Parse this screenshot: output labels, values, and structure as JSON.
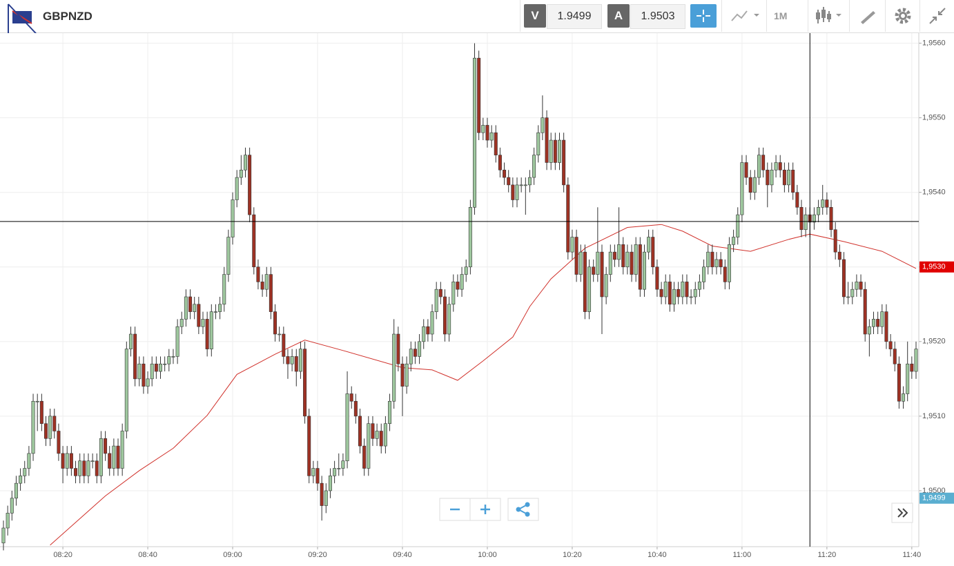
{
  "chart_data": {
    "type": "candlestick",
    "symbol": "GBPNZD",
    "bid_label": "V",
    "bid": 1.9499,
    "ask_label": "A",
    "ask": 1.9503,
    "timeframe": "1M",
    "up_color": "#9ec79e",
    "down_color": "#9e3224",
    "xlim": [
      "08:06",
      "11:41"
    ],
    "xticks": [
      "08:20",
      "08:40",
      "09:00",
      "09:20",
      "09:40",
      "10:00",
      "10:20",
      "10:40",
      "11:00",
      "11:20",
      "11:40"
    ],
    "ylim": [
      1.94925,
      1.95607
    ],
    "yticks": [
      {
        "value": 1.95,
        "label": "1,9500"
      },
      {
        "value": 1.951,
        "label": "1,9510"
      },
      {
        "value": 1.952,
        "label": "1,9520"
      },
      {
        "value": 1.953,
        "label": "1,9530"
      },
      {
        "value": 1.954,
        "label": "1,9540"
      },
      {
        "value": 1.955,
        "label": "1,9550"
      },
      {
        "value": 1.956,
        "label": "1,9560"
      }
    ],
    "grid": true,
    "crosshair": {
      "price": 1.95361,
      "time": "11:16"
    },
    "price_tags": [
      {
        "value": 1.953,
        "label": "1,9530",
        "color": "#e00000"
      },
      {
        "value": 1.9499,
        "label": "1,9499",
        "color": "#5aaed0"
      }
    ],
    "ma": {
      "color": "#d0302a",
      "x": [
        "08:17",
        "08:30",
        "08:38",
        "08:46",
        "08:54",
        "09:01",
        "09:10",
        "09:17",
        "09:26",
        "09:40",
        "09:47",
        "09:53",
        "09:59",
        "10:06",
        "10:10",
        "10:15",
        "10:23",
        "10:33",
        "10:41",
        "10:46",
        "10:53",
        "11:02",
        "11:11",
        "11:16",
        "11:24",
        "11:33",
        "11:41"
      ],
      "values": [
        1.94927,
        1.94993,
        1.95027,
        1.95057,
        1.95101,
        1.95156,
        1.95183,
        1.95202,
        1.95188,
        1.95165,
        1.95162,
        1.95148,
        1.95174,
        1.95206,
        1.95247,
        1.95284,
        1.95325,
        1.95353,
        1.95357,
        1.95348,
        1.95328,
        1.95321,
        1.95337,
        1.95344,
        1.95334,
        1.95321,
        1.95298
      ]
    },
    "candles": [
      [
        1.9493,
        1.9496,
        1.9492,
        1.9495
      ],
      [
        1.9495,
        1.9498,
        1.9494,
        1.9497
      ],
      [
        1.9497,
        1.95,
        1.9496,
        1.9499
      ],
      [
        1.9499,
        1.9502,
        1.9498,
        1.9501
      ],
      [
        1.9501,
        1.9503,
        1.95,
        1.9502
      ],
      [
        1.9502,
        1.9504,
        1.9501,
        1.9503
      ],
      [
        1.9503,
        1.9506,
        1.9502,
        1.9505
      ],
      [
        1.9505,
        1.9513,
        1.9504,
        1.9512
      ],
      [
        1.9512,
        1.9513,
        1.9508,
        1.9512
      ],
      [
        1.9512,
        1.9513,
        1.9508,
        1.9509
      ],
      [
        1.9509,
        1.951,
        1.9506,
        1.9507
      ],
      [
        1.9507,
        1.9511,
        1.9506,
        1.951
      ],
      [
        1.951,
        1.9511,
        1.9507,
        1.9508
      ],
      [
        1.9508,
        1.9509,
        1.9504,
        1.9505
      ],
      [
        1.9505,
        1.9506,
        1.9501,
        1.9503
      ],
      [
        1.9503,
        1.9506,
        1.9502,
        1.9505
      ],
      [
        1.9505,
        1.9506,
        1.9502,
        1.9503
      ],
      [
        1.9503,
        1.9504,
        1.9501,
        1.9502
      ],
      [
        1.9502,
        1.9505,
        1.9501,
        1.9504
      ],
      [
        1.9504,
        1.9505,
        1.9501,
        1.9502
      ],
      [
        1.9502,
        1.9505,
        1.9501,
        1.9504
      ],
      [
        1.9504,
        1.9505,
        1.9503,
        1.9504
      ],
      [
        1.9504,
        1.9505,
        1.9501,
        1.9502
      ],
      [
        1.9502,
        1.9508,
        1.9501,
        1.9507
      ],
      [
        1.9507,
        1.9508,
        1.9504,
        1.9505
      ],
      [
        1.9505,
        1.9506,
        1.9502,
        1.9503
      ],
      [
        1.9503,
        1.9507,
        1.9502,
        1.9506
      ],
      [
        1.9506,
        1.9507,
        1.9502,
        1.9503
      ],
      [
        1.9503,
        1.9509,
        1.9502,
        1.9508
      ],
      [
        1.9508,
        1.952,
        1.9507,
        1.9519
      ],
      [
        1.9519,
        1.9522,
        1.9518,
        1.9521
      ],
      [
        1.9521,
        1.9522,
        1.9514,
        1.9515
      ],
      [
        1.9515,
        1.9518,
        1.9514,
        1.9517
      ],
      [
        1.9517,
        1.9518,
        1.9513,
        1.9514
      ],
      [
        1.9514,
        1.9516,
        1.9513,
        1.9515
      ],
      [
        1.9515,
        1.9518,
        1.9514,
        1.9517
      ],
      [
        1.9517,
        1.9518,
        1.9515,
        1.9516
      ],
      [
        1.9516,
        1.9518,
        1.9515,
        1.9517
      ],
      [
        1.9517,
        1.9518,
        1.9516,
        1.9517
      ],
      [
        1.9517,
        1.9519,
        1.9516,
        1.9518
      ],
      [
        1.9518,
        1.9519,
        1.9517,
        1.9518
      ],
      [
        1.9518,
        1.9523,
        1.9517,
        1.9522
      ],
      [
        1.9522,
        1.9524,
        1.9521,
        1.9523
      ],
      [
        1.9523,
        1.9527,
        1.9522,
        1.9526
      ],
      [
        1.9526,
        1.9527,
        1.9523,
        1.9524
      ],
      [
        1.9524,
        1.9526,
        1.9523,
        1.9525
      ],
      [
        1.9525,
        1.9526,
        1.9521,
        1.9522
      ],
      [
        1.9522,
        1.9524,
        1.9521,
        1.9523
      ],
      [
        1.9523,
        1.9524,
        1.9518,
        1.9519
      ],
      [
        1.9519,
        1.9525,
        1.9518,
        1.9524
      ],
      [
        1.9524,
        1.9525,
        1.9523,
        1.9524
      ],
      [
        1.9524,
        1.9526,
        1.9523,
        1.9525
      ],
      [
        1.9525,
        1.953,
        1.9524,
        1.9529
      ],
      [
        1.9529,
        1.9535,
        1.9528,
        1.9534
      ],
      [
        1.9534,
        1.954,
        1.9533,
        1.9539
      ],
      [
        1.9539,
        1.9543,
        1.9538,
        1.9542
      ],
      [
        1.9542,
        1.9545,
        1.9541,
        1.9543
      ],
      [
        1.9543,
        1.9546,
        1.9542,
        1.9545
      ],
      [
        1.9545,
        1.9546,
        1.9536,
        1.9537
      ],
      [
        1.9537,
        1.9538,
        1.9529,
        1.953
      ],
      [
        1.953,
        1.9531,
        1.9527,
        1.9528
      ],
      [
        1.9528,
        1.9529,
        1.9526,
        1.9527
      ],
      [
        1.9527,
        1.953,
        1.9526,
        1.9529
      ],
      [
        1.9529,
        1.953,
        1.9523,
        1.9524
      ],
      [
        1.9524,
        1.9525,
        1.952,
        1.9521
      ],
      [
        1.9521,
        1.9522,
        1.952,
        1.9521
      ],
      [
        1.9521,
        1.9522,
        1.9517,
        1.9518
      ],
      [
        1.9518,
        1.9519,
        1.9515,
        1.9517
      ],
      [
        1.9517,
        1.9519,
        1.9516,
        1.9518
      ],
      [
        1.9518,
        1.9519,
        1.9514,
        1.9516
      ],
      [
        1.9516,
        1.952,
        1.9515,
        1.9519
      ],
      [
        1.9519,
        1.952,
        1.9509,
        1.951
      ],
      [
        1.951,
        1.9511,
        1.9501,
        1.9502
      ],
      [
        1.9502,
        1.9504,
        1.9501,
        1.9503
      ],
      [
        1.9503,
        1.9504,
        1.95,
        1.9501
      ],
      [
        1.9501,
        1.9502,
        1.9496,
        1.9498
      ],
      [
        1.9498,
        1.9501,
        1.9497,
        1.95
      ],
      [
        1.95,
        1.9503,
        1.9499,
        1.9502
      ],
      [
        1.9502,
        1.9504,
        1.9501,
        1.9503
      ],
      [
        1.9503,
        1.9505,
        1.9502,
        1.9503
      ],
      [
        1.9503,
        1.9505,
        1.9502,
        1.9504
      ],
      [
        1.9504,
        1.9516,
        1.9503,
        1.9513
      ],
      [
        1.9513,
        1.9514,
        1.9511,
        1.9512
      ],
      [
        1.9512,
        1.9513,
        1.9509,
        1.951
      ],
      [
        1.951,
        1.9511,
        1.9505,
        1.9506
      ],
      [
        1.9506,
        1.9507,
        1.9502,
        1.9503
      ],
      [
        1.9503,
        1.951,
        1.9502,
        1.9509
      ],
      [
        1.9509,
        1.951,
        1.9506,
        1.9507
      ],
      [
        1.9507,
        1.9509,
        1.9506,
        1.9508
      ],
      [
        1.9508,
        1.9509,
        1.9505,
        1.9506
      ],
      [
        1.9506,
        1.951,
        1.9505,
        1.9509
      ],
      [
        1.9509,
        1.9513,
        1.9508,
        1.9512
      ],
      [
        1.9512,
        1.9523,
        1.9511,
        1.9521
      ],
      [
        1.9521,
        1.9522,
        1.9516,
        1.9517
      ],
      [
        1.9517,
        1.9518,
        1.951,
        1.9514
      ],
      [
        1.9514,
        1.9518,
        1.9513,
        1.9517
      ],
      [
        1.9517,
        1.952,
        1.9516,
        1.9519
      ],
      [
        1.9519,
        1.952,
        1.9517,
        1.9518
      ],
      [
        1.9518,
        1.9521,
        1.9517,
        1.952
      ],
      [
        1.952,
        1.9523,
        1.9519,
        1.9522
      ],
      [
        1.9522,
        1.9523,
        1.952,
        1.9521
      ],
      [
        1.9521,
        1.9525,
        1.952,
        1.9524
      ],
      [
        1.9524,
        1.9528,
        1.9523,
        1.9527
      ],
      [
        1.9527,
        1.9528,
        1.9525,
        1.9526
      ],
      [
        1.9526,
        1.9527,
        1.952,
        1.9521
      ],
      [
        1.9521,
        1.9526,
        1.952,
        1.9525
      ],
      [
        1.9525,
        1.9529,
        1.9524,
        1.9528
      ],
      [
        1.9528,
        1.9529,
        1.9526,
        1.9527
      ],
      [
        1.9527,
        1.953,
        1.9526,
        1.9529
      ],
      [
        1.9529,
        1.9531,
        1.9528,
        1.953
      ],
      [
        1.953,
        1.9539,
        1.9529,
        1.9538
      ],
      [
        1.9538,
        1.956,
        1.9537,
        1.9558
      ],
      [
        1.9558,
        1.9559,
        1.9547,
        1.9548
      ],
      [
        1.9548,
        1.955,
        1.9547,
        1.9549
      ],
      [
        1.9549,
        1.955,
        1.9546,
        1.9547
      ],
      [
        1.9547,
        1.9549,
        1.9546,
        1.9548
      ],
      [
        1.9548,
        1.9549,
        1.9544,
        1.9545
      ],
      [
        1.9545,
        1.9546,
        1.9542,
        1.9543
      ],
      [
        1.9543,
        1.9544,
        1.9541,
        1.9542
      ],
      [
        1.9542,
        1.9543,
        1.954,
        1.9541
      ],
      [
        1.9541,
        1.9542,
        1.9538,
        1.9539
      ],
      [
        1.9539,
        1.9542,
        1.9538,
        1.9541
      ],
      [
        1.9541,
        1.9542,
        1.954,
        1.9541
      ],
      [
        1.9541,
        1.9542,
        1.9537,
        1.9541
      ],
      [
        1.9541,
        1.9543,
        1.954,
        1.9542
      ],
      [
        1.9542,
        1.9546,
        1.9541,
        1.9545
      ],
      [
        1.9545,
        1.9549,
        1.9544,
        1.9548
      ],
      [
        1.9548,
        1.9553,
        1.9547,
        1.955
      ],
      [
        1.955,
        1.9551,
        1.9543,
        1.9544
      ],
      [
        1.9544,
        1.9548,
        1.9543,
        1.9547
      ],
      [
        1.9547,
        1.9548,
        1.9543,
        1.9544
      ],
      [
        1.9544,
        1.9548,
        1.9543,
        1.9547
      ],
      [
        1.9547,
        1.9548,
        1.954,
        1.9541
      ],
      [
        1.9541,
        1.9542,
        1.9531,
        1.9532
      ],
      [
        1.9532,
        1.9535,
        1.9531,
        1.9534
      ],
      [
        1.9534,
        1.9535,
        1.9528,
        1.9529
      ],
      [
        1.9529,
        1.9533,
        1.9528,
        1.9532
      ],
      [
        1.9532,
        1.9533,
        1.9523,
        1.9524
      ],
      [
        1.9524,
        1.9531,
        1.9523,
        1.953
      ],
      [
        1.953,
        1.9531,
        1.9528,
        1.9529
      ],
      [
        1.9529,
        1.9538,
        1.9528,
        1.9532
      ],
      [
        1.9532,
        1.9533,
        1.9521,
        1.9526
      ],
      [
        1.9526,
        1.953,
        1.9525,
        1.9529
      ],
      [
        1.9529,
        1.9533,
        1.9528,
        1.9532
      ],
      [
        1.9532,
        1.9533,
        1.953,
        1.9531
      ],
      [
        1.9531,
        1.9538,
        1.953,
        1.9533
      ],
      [
        1.9533,
        1.9534,
        1.9529,
        1.953
      ],
      [
        1.953,
        1.9533,
        1.9529,
        1.9532
      ],
      [
        1.9532,
        1.9533,
        1.9528,
        1.9529
      ],
      [
        1.9529,
        1.9534,
        1.9528,
        1.9533
      ],
      [
        1.9533,
        1.9534,
        1.9526,
        1.9527
      ],
      [
        1.9527,
        1.9533,
        1.9526,
        1.9532
      ],
      [
        1.9532,
        1.9535,
        1.9531,
        1.9534
      ],
      [
        1.9534,
        1.9535,
        1.9529,
        1.953
      ],
      [
        1.953,
        1.9531,
        1.9526,
        1.9527
      ],
      [
        1.9527,
        1.9528,
        1.9525,
        1.9526
      ],
      [
        1.9526,
        1.9529,
        1.9525,
        1.9528
      ],
      [
        1.9528,
        1.9529,
        1.9524,
        1.9525
      ],
      [
        1.9525,
        1.9528,
        1.9524,
        1.9527
      ],
      [
        1.9527,
        1.9528,
        1.9525,
        1.9526
      ],
      [
        1.9526,
        1.9529,
        1.9525,
        1.9528
      ],
      [
        1.9528,
        1.9529,
        1.9525,
        1.9526
      ],
      [
        1.9526,
        1.9527,
        1.9525,
        1.9526
      ],
      [
        1.9526,
        1.9528,
        1.9525,
        1.9527
      ],
      [
        1.9527,
        1.9529,
        1.9526,
        1.9528
      ],
      [
        1.9528,
        1.9531,
        1.9527,
        1.953
      ],
      [
        1.953,
        1.9533,
        1.9529,
        1.9532
      ],
      [
        1.9532,
        1.9533,
        1.9529,
        1.953
      ],
      [
        1.953,
        1.9532,
        1.9529,
        1.9531
      ],
      [
        1.9531,
        1.9532,
        1.9529,
        1.953
      ],
      [
        1.953,
        1.9531,
        1.9527,
        1.9528
      ],
      [
        1.9528,
        1.9534,
        1.9527,
        1.9533
      ],
      [
        1.9533,
        1.9535,
        1.9532,
        1.9534
      ],
      [
        1.9534,
        1.9538,
        1.9533,
        1.9537
      ],
      [
        1.9537,
        1.9545,
        1.9536,
        1.9544
      ],
      [
        1.9544,
        1.9545,
        1.9541,
        1.9542
      ],
      [
        1.9542,
        1.9543,
        1.9539,
        1.954
      ],
      [
        1.954,
        1.9543,
        1.9539,
        1.9542
      ],
      [
        1.9542,
        1.9546,
        1.9541,
        1.9545
      ],
      [
        1.9545,
        1.9546,
        1.9542,
        1.9543
      ],
      [
        1.9543,
        1.9544,
        1.9538,
        1.9541
      ],
      [
        1.9541,
        1.9544,
        1.954,
        1.9543
      ],
      [
        1.9543,
        1.9545,
        1.9542,
        1.9544
      ],
      [
        1.9544,
        1.9545,
        1.9542,
        1.9543
      ],
      [
        1.9543,
        1.9544,
        1.954,
        1.9541
      ],
      [
        1.9541,
        1.9544,
        1.954,
        1.9543
      ],
      [
        1.9543,
        1.9544,
        1.9539,
        1.954
      ],
      [
        1.954,
        1.9541,
        1.9537,
        1.9538
      ],
      [
        1.9538,
        1.9539,
        1.9534,
        1.9535
      ],
      [
        1.9535,
        1.9538,
        1.9534,
        1.9537
      ],
      [
        1.9537,
        1.9538,
        1.9534,
        1.9536
      ],
      [
        1.9536,
        1.9538,
        1.9535,
        1.9537
      ],
      [
        1.9537,
        1.9539,
        1.9536,
        1.9538
      ],
      [
        1.9538,
        1.9541,
        1.9537,
        1.9539
      ],
      [
        1.9539,
        1.954,
        1.9537,
        1.9538
      ],
      [
        1.9538,
        1.9539,
        1.9534,
        1.9535
      ],
      [
        1.9535,
        1.9536,
        1.9531,
        1.9532
      ],
      [
        1.9532,
        1.9533,
        1.953,
        1.9531
      ],
      [
        1.9531,
        1.9532,
        1.9525,
        1.9526
      ],
      [
        1.9526,
        1.9528,
        1.9525,
        1.9526
      ],
      [
        1.9526,
        1.9528,
        1.9525,
        1.9527
      ],
      [
        1.9527,
        1.9529,
        1.9526,
        1.9528
      ],
      [
        1.9528,
        1.9529,
        1.9526,
        1.9527
      ],
      [
        1.9527,
        1.9528,
        1.952,
        1.9521
      ],
      [
        1.9521,
        1.9523,
        1.9518,
        1.9522
      ],
      [
        1.9522,
        1.9524,
        1.9521,
        1.9523
      ],
      [
        1.9523,
        1.9524,
        1.9521,
        1.9522
      ],
      [
        1.9522,
        1.9525,
        1.9521,
        1.9524
      ],
      [
        1.9524,
        1.9525,
        1.9519,
        1.952
      ],
      [
        1.952,
        1.9521,
        1.9518,
        1.9519
      ],
      [
        1.9519,
        1.952,
        1.9516,
        1.9517
      ],
      [
        1.9517,
        1.9518,
        1.9511,
        1.9512
      ],
      [
        1.9512,
        1.9514,
        1.9511,
        1.9513
      ],
      [
        1.9513,
        1.952,
        1.9512,
        1.9517
      ],
      [
        1.9517,
        1.9518,
        1.9515,
        1.9516
      ],
      [
        1.9516,
        1.952,
        1.9515,
        1.9519
      ]
    ]
  }
}
